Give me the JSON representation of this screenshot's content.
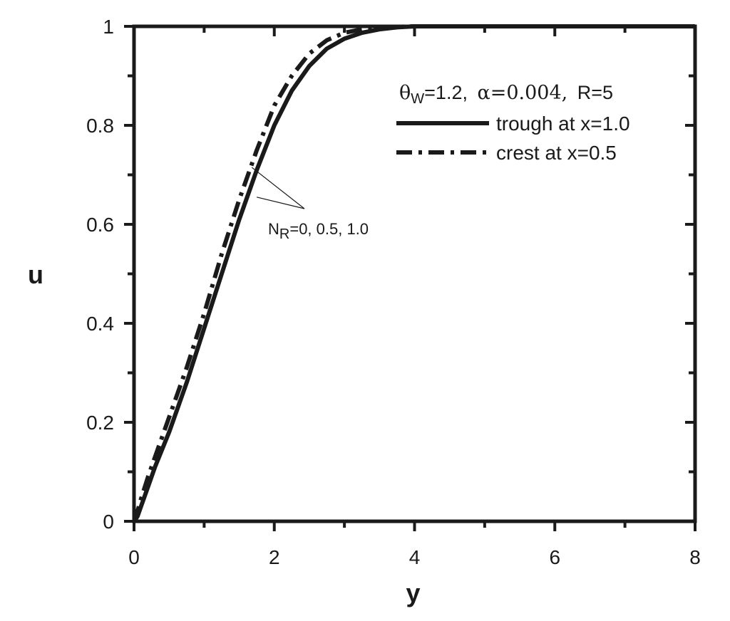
{
  "chart_data": {
    "type": "line",
    "xlabel": "y",
    "ylabel": "u",
    "xlim": [
      0,
      8
    ],
    "ylim": [
      0,
      1
    ],
    "x_ticks": [
      "0",
      "2",
      "4",
      "6",
      "8"
    ],
    "y_ticks": [
      "0",
      "0.2",
      "0.4",
      "0.6",
      "0.8",
      "1"
    ],
    "grid": false,
    "legend_position": "top-right",
    "legend_title": {
      "theta_symbol": "θ",
      "theta_sub": "W",
      "theta_value": "=1.2,",
      "alpha_text": "α=0.004,",
      "r_text": "R=5"
    },
    "series": [
      {
        "name": "trough at x=1.0",
        "style": "solid",
        "x": [
          0,
          0.05,
          0.1,
          0.2,
          0.3,
          0.5,
          0.75,
          1.0,
          1.25,
          1.5,
          1.75,
          2.0,
          2.25,
          2.5,
          2.75,
          3.0,
          3.25,
          3.5,
          3.75,
          4.0,
          4.5,
          5,
          6,
          7,
          8
        ],
        "y": [
          0,
          0.01,
          0.03,
          0.07,
          0.11,
          0.18,
          0.28,
          0.39,
          0.5,
          0.61,
          0.71,
          0.8,
          0.87,
          0.92,
          0.955,
          0.975,
          0.987,
          0.994,
          0.998,
          1.0,
          1.0,
          1.0,
          1.0,
          1.0,
          1.0
        ]
      },
      {
        "name": "crest at x=0.5",
        "style": "dashdot",
        "x": [
          0,
          0.05,
          0.1,
          0.2,
          0.3,
          0.5,
          0.75,
          1.0,
          1.25,
          1.5,
          1.75,
          2.0,
          2.25,
          2.5,
          2.75,
          3.0,
          3.25,
          3.5,
          3.75,
          4.0,
          4.5,
          5,
          6,
          7,
          8
        ],
        "y": [
          0,
          0.02,
          0.045,
          0.09,
          0.13,
          0.21,
          0.31,
          0.42,
          0.54,
          0.65,
          0.75,
          0.84,
          0.9,
          0.945,
          0.972,
          0.987,
          0.994,
          0.997,
          0.999,
          1.0,
          1.0,
          1.0,
          1.0,
          1.0,
          1.0
        ]
      }
    ],
    "annotation": {
      "prefix": "N",
      "sub": "R",
      "text": "=0, 0.5, 1.0",
      "arrow_targets": [
        [
          1.68,
          0.715
        ],
        [
          1.75,
          0.655
        ]
      ]
    }
  }
}
